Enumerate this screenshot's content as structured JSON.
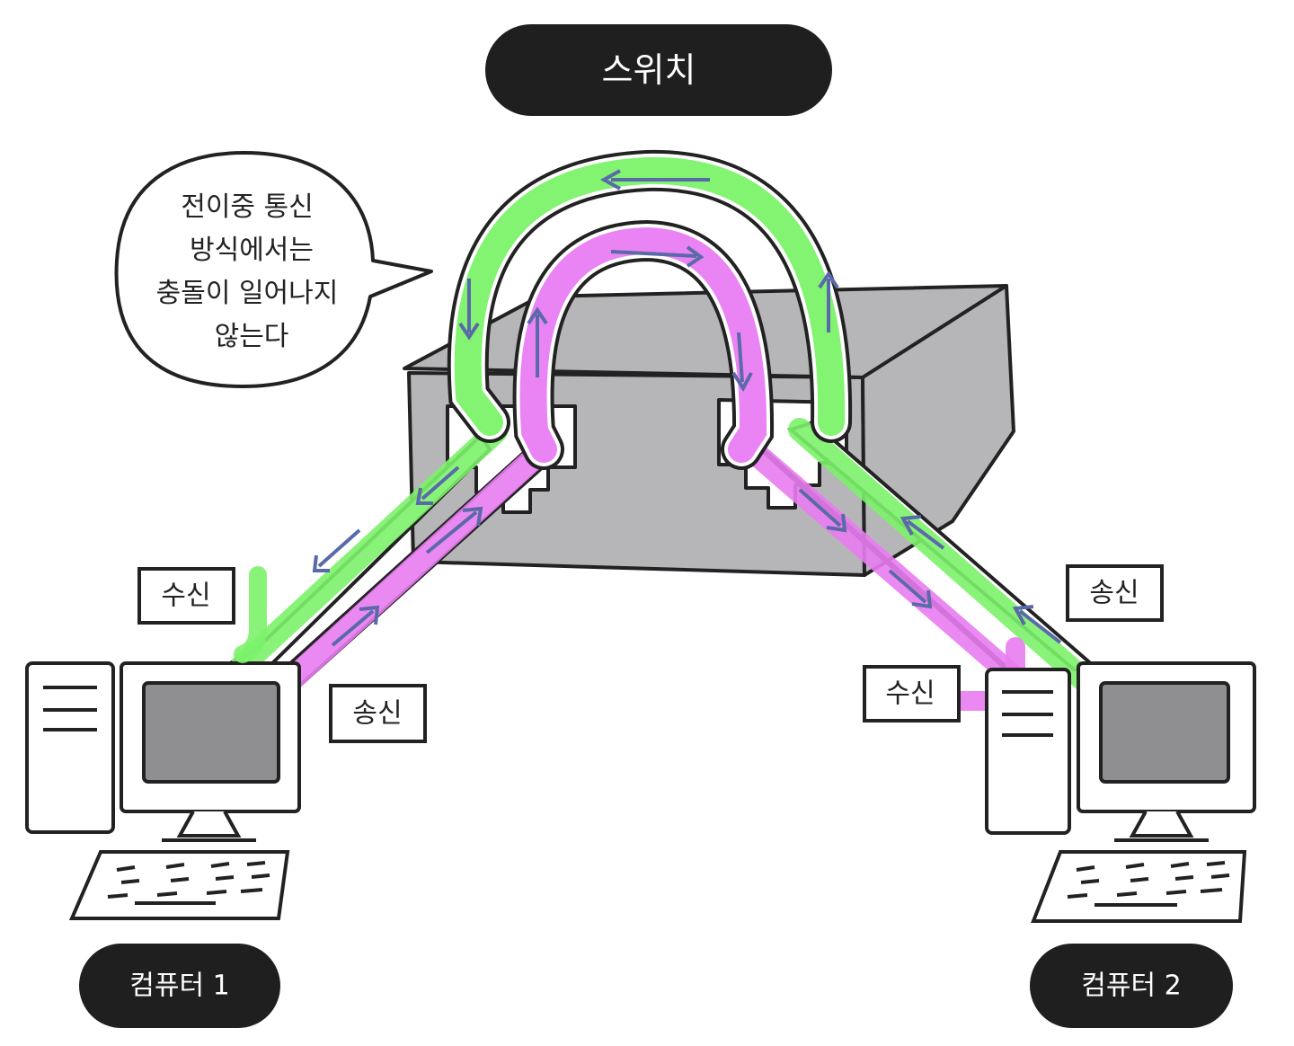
{
  "title": "스위치",
  "speech_bubble": {
    "lines": [
      "전이중 통신",
      "방식에서는",
      "충돌이 일어나지",
      "않는다"
    ]
  },
  "computer1": {
    "name": "컴퓨터 1",
    "receive_label": "수신",
    "send_label": "송신"
  },
  "computer2": {
    "name": "컴퓨터 2",
    "receive_label": "수신",
    "send_label": "송신"
  },
  "colors": {
    "green_path": "#7cf26a",
    "magenta_path": "#e97cf2",
    "switch_body": "#b6b6b8",
    "pill": "#1f1f1f",
    "arrow": "#5a6aa8"
  }
}
